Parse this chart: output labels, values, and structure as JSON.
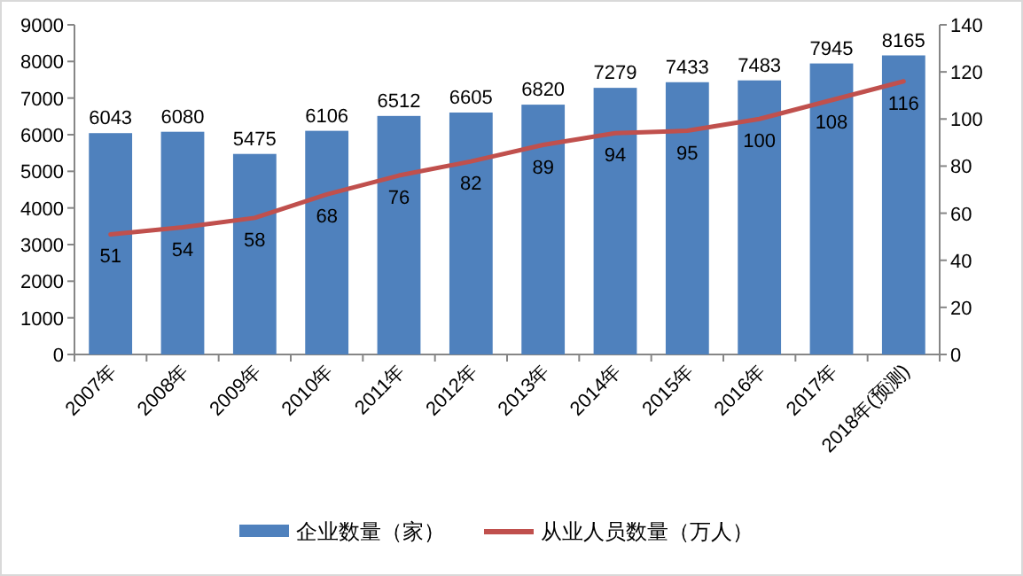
{
  "chart_data": {
    "type": "bar",
    "categories": [
      "2007年",
      "2008年",
      "2009年",
      "2010年",
      "2011年",
      "2012年",
      "2013年",
      "2014年",
      "2015年",
      "2016年",
      "2017年",
      "2018年(预测)"
    ],
    "series": [
      {
        "name": "企业数量（家）",
        "color": "#4f81bd",
        "values": [
          6043,
          6080,
          5475,
          6106,
          6512,
          6605,
          6820,
          7279,
          7433,
          7483,
          7945,
          8165
        ]
      },
      {
        "name": "从业人员数量（万人）",
        "type": "line",
        "axis": "y2",
        "color": "#c0504d",
        "values": [
          51,
          54,
          58,
          68,
          76,
          82,
          89,
          94,
          95,
          100,
          108,
          116
        ]
      }
    ],
    "ylim": [
      0,
      9000
    ],
    "yticks": [
      0,
      1000,
      2000,
      3000,
      4000,
      5000,
      6000,
      7000,
      8000,
      9000
    ],
    "y2lim": [
      0,
      140
    ],
    "y2ticks": [
      0,
      20,
      40,
      60,
      80,
      100,
      120,
      140
    ],
    "data_labels": true,
    "grid": false,
    "legend": "bottom",
    "marker": "none",
    "line_style": "solid"
  }
}
